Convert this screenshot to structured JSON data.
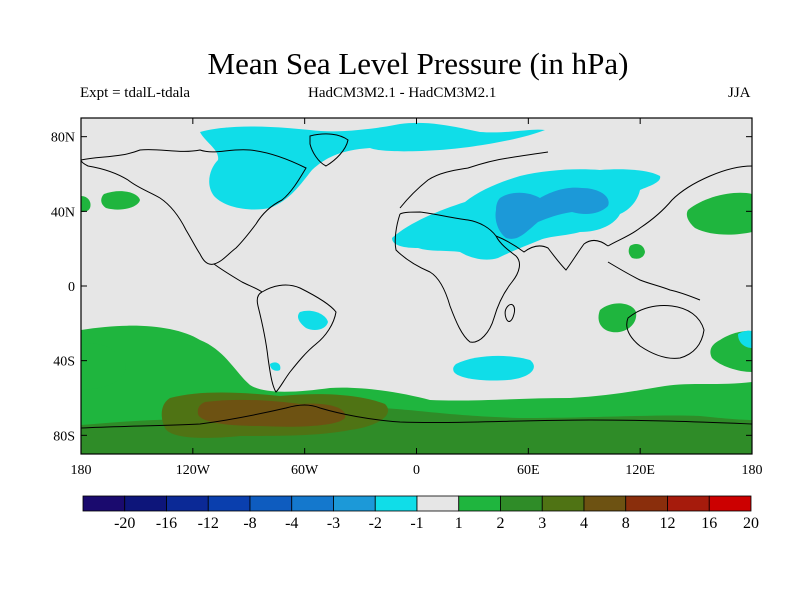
{
  "header": {
    "title": "Mean Sea Level Pressure (in hPa)",
    "experiment": "Expt = tdalL-tdala",
    "models": "HadCM3M2.1 - HadCM3M2.1",
    "season": "JJA"
  },
  "axes": {
    "lat_labels": [
      "80N",
      "40N",
      "0",
      "40S",
      "80S"
    ],
    "lon_labels": [
      "180",
      "120W",
      "60W",
      "0",
      "60E",
      "120E",
      "180"
    ]
  },
  "colorbar": {
    "labels": [
      "-20",
      "-16",
      "-12",
      "-8",
      "-4",
      "-3",
      "-2",
      "-1",
      "1",
      "2",
      "3",
      "4",
      "8",
      "12",
      "16",
      "20"
    ],
    "colors": [
      "#1a0a6e",
      "#0d157a",
      "#0b2996",
      "#0a3fae",
      "#0e5cbf",
      "#1478cd",
      "#1c99d8",
      "#10dde8",
      "#e6e6e6",
      "#1fb53e",
      "#2f8c28",
      "#4f7314",
      "#6d5212",
      "#8a2e0c",
      "#a61b0c",
      "#cc0000"
    ]
  },
  "colors": {
    "background": "#e6e6e6",
    "neg_light": "#10dde8",
    "neg_mid": "#1c99d8",
    "pos_light": "#1fb53e",
    "pos_mid": "#2f8c28",
    "pos_dark": "#4f7314",
    "pos_darker": "#6d5212"
  }
}
